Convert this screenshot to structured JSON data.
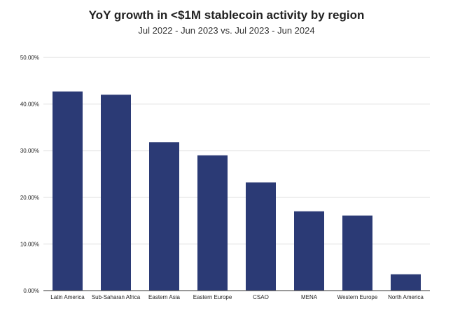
{
  "chart_data": {
    "type": "bar",
    "title": "YoY growth in <$1M stablecoin activity by region",
    "subtitle": "Jul 2022 - Jun 2023 vs. Jul 2023 - Jun 2024",
    "xlabel": "",
    "ylabel": "",
    "categories": [
      "Latin America",
      "Sub-Saharan Africa",
      "Eastern Asia",
      "Eastern Europe",
      "CSAO",
      "MENA",
      "Western Europe",
      "North America"
    ],
    "values": [
      42.7,
      42.0,
      31.8,
      29.0,
      23.2,
      17.0,
      16.1,
      3.5
    ],
    "ylim": [
      0,
      50
    ],
    "yticks": [
      0,
      10,
      20,
      30,
      40,
      50
    ],
    "ytick_labels": [
      "0.00%",
      "10.00%",
      "20.00%",
      "30.00%",
      "40.00%",
      "50.00%"
    ],
    "grid": true,
    "legend": "none",
    "bar_color": "#2b3a75",
    "grid_color": "#dddddd",
    "axis_color": "#333333"
  }
}
